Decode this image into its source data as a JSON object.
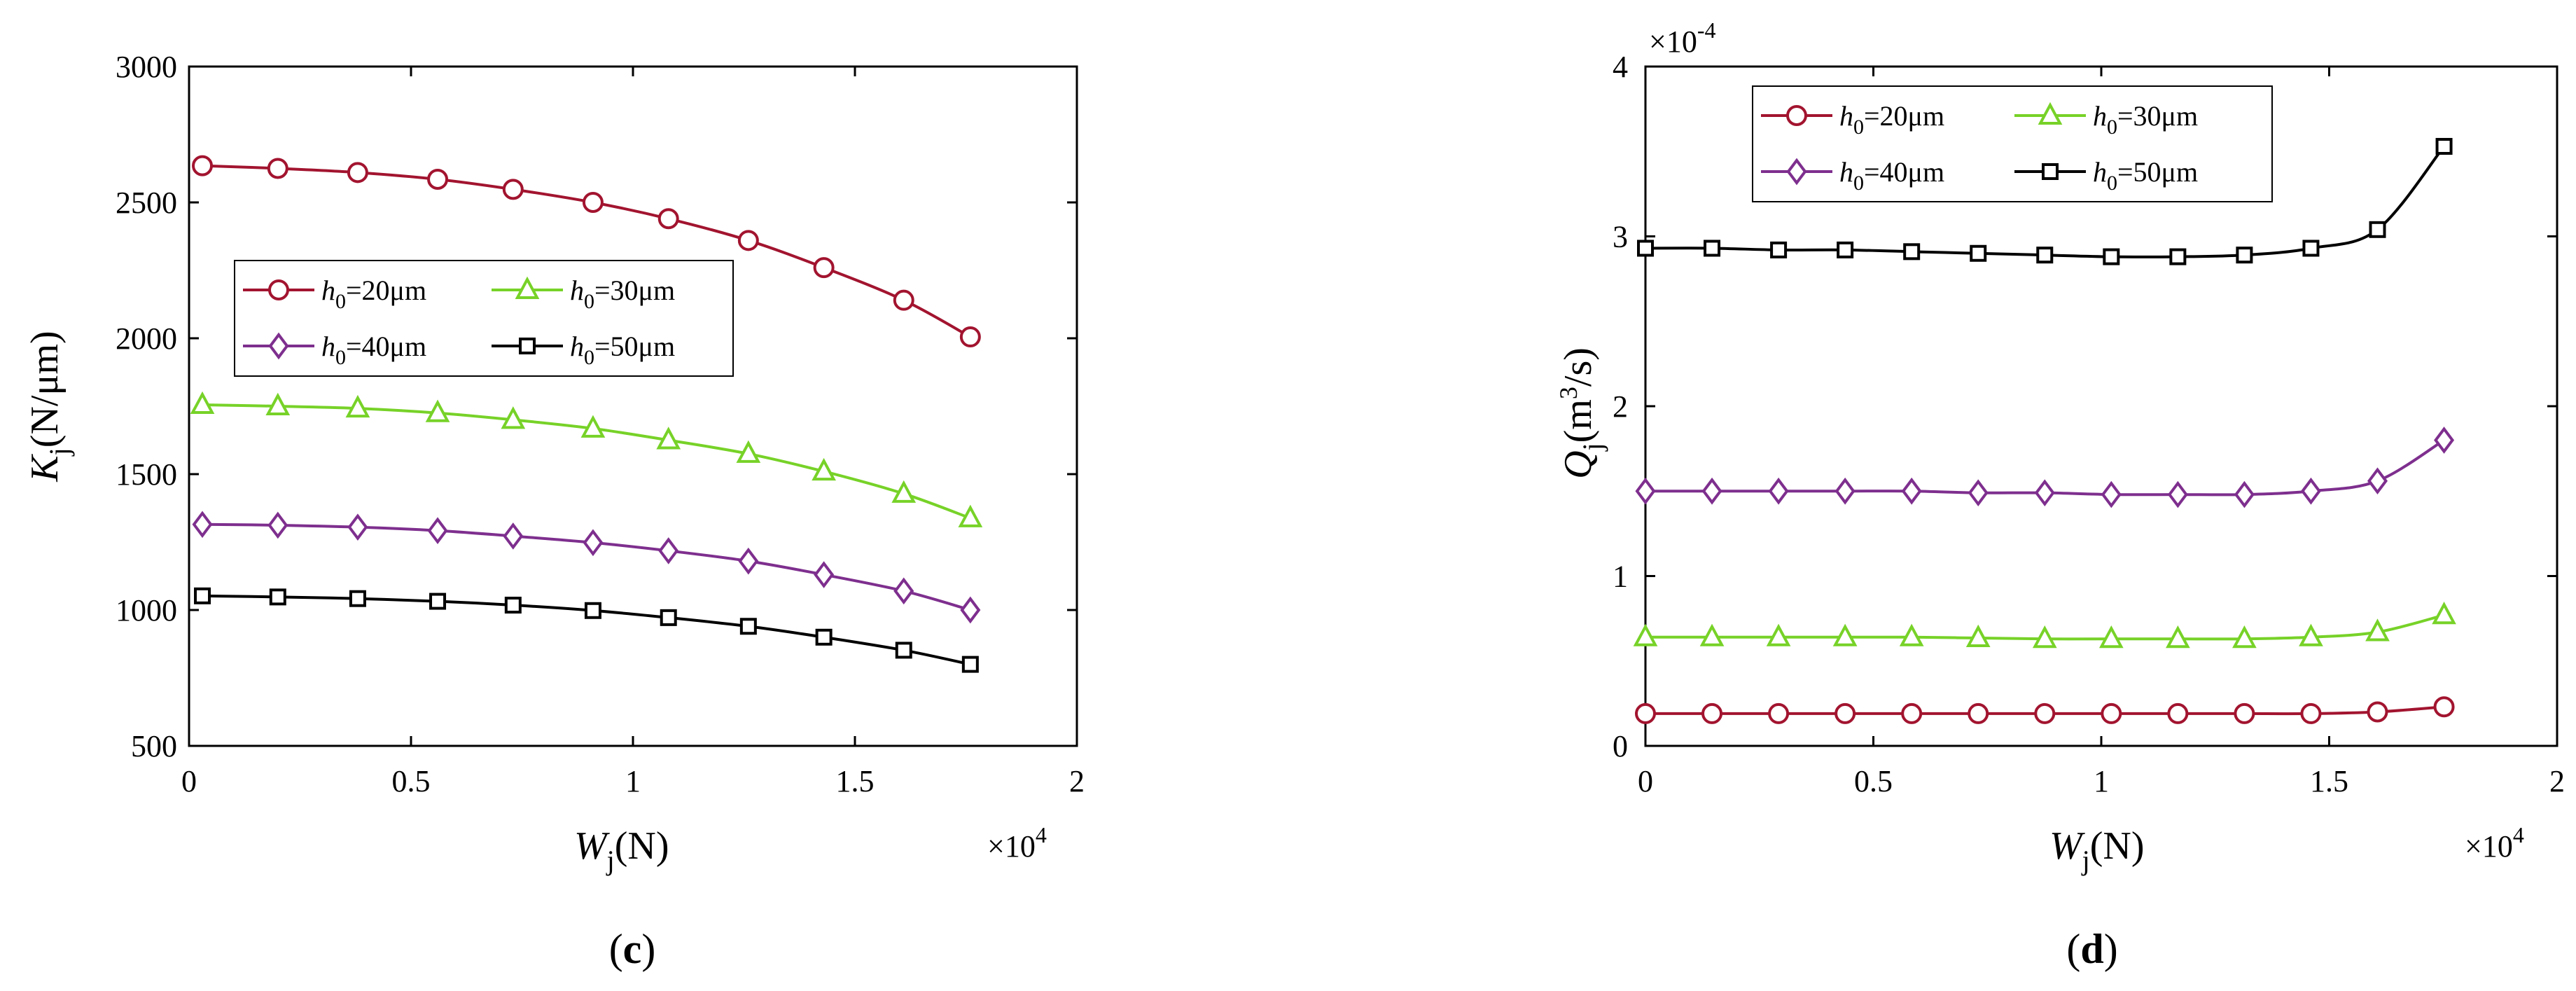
{
  "colors": {
    "h20": "#A2142F",
    "h30": "#77D228",
    "h40": "#7E2F8E",
    "h50": "#000000"
  },
  "chart_data": [
    {
      "id": "c",
      "type": "line",
      "caption": {
        "open": "(",
        "letter": "c",
        "close": ")"
      },
      "xlabel": {
        "main": "W",
        "sub": "j",
        "unit": "(N)"
      },
      "ylabel": {
        "main": "K",
        "sub": "j",
        "unit": "(N/μm)"
      },
      "xexp": {
        "base": "×10",
        "exp": "4"
      },
      "xlim": [
        0,
        2
      ],
      "ylim": [
        500,
        3000
      ],
      "xticks": [
        "0",
        "0.5",
        "1",
        "1.5",
        "2"
      ],
      "yticks": [
        "500",
        "1000",
        "1500",
        "2000",
        "2500",
        "3000"
      ],
      "xtick_values": [
        0,
        0.5,
        1,
        1.5,
        2
      ],
      "ytick_values": [
        500,
        1000,
        1500,
        2000,
        2500,
        3000
      ],
      "legend": {
        "position": "middle-left"
      },
      "x": [
        0.03,
        0.2,
        0.38,
        0.56,
        0.73,
        0.91,
        1.08,
        1.26,
        1.43,
        1.61,
        1.76
      ],
      "series": [
        {
          "key": "h20",
          "h": "h",
          "sub": "0",
          "value": "=20μm",
          "marker": "circle",
          "values": [
            2635,
            2625,
            2610,
            2585,
            2548,
            2500,
            2440,
            2360,
            2260,
            2140,
            2005
          ]
        },
        {
          "key": "h30",
          "h": "h",
          "sub": "0",
          "value": "=30μm",
          "marker": "triangle",
          "values": [
            1755,
            1750,
            1742,
            1725,
            1700,
            1668,
            1625,
            1575,
            1510,
            1428,
            1338
          ]
        },
        {
          "key": "h40",
          "h": "h",
          "sub": "0",
          "value": "=40μm",
          "marker": "diamond",
          "values": [
            1315,
            1312,
            1305,
            1292,
            1272,
            1248,
            1218,
            1180,
            1130,
            1070,
            1000
          ]
        },
        {
          "key": "h50",
          "h": "h",
          "sub": "0",
          "value": "=50μm",
          "marker": "square",
          "values": [
            1052,
            1048,
            1042,
            1032,
            1018,
            998,
            972,
            940,
            900,
            852,
            800
          ]
        }
      ]
    },
    {
      "id": "d",
      "type": "line",
      "caption": {
        "open": "(",
        "letter": "d",
        "close": ")"
      },
      "xlabel": {
        "main": "W",
        "sub": "j",
        "unit": "(N)"
      },
      "ylabel": {
        "main": "Q",
        "sub": "j",
        "unit": "(m",
        "sup": "3",
        "unit2": "/s)"
      },
      "xexp": {
        "base": "×10",
        "exp": "4"
      },
      "yexp": {
        "base": "×10",
        "exp": "-4"
      },
      "xlim": [
        0,
        2
      ],
      "ylim": [
        0,
        4
      ],
      "xticks": [
        "0",
        "0.5",
        "1",
        "1.5",
        "2"
      ],
      "yticks": [
        "0",
        "1",
        "2",
        "3",
        "4"
      ],
      "xtick_values": [
        0,
        0.5,
        1,
        1.5,
        2
      ],
      "ytick_values": [
        0,
        1,
        2,
        3,
        4
      ],
      "legend": {
        "position": "top-left"
      },
      "x": [
        0,
        0.146,
        0.292,
        0.438,
        0.584,
        0.73,
        0.876,
        1.022,
        1.168,
        1.314,
        1.46,
        1.606,
        1.752
      ],
      "series": [
        {
          "key": "h20",
          "h": "h",
          "sub": "0",
          "value": "=20μm",
          "marker": "circle",
          "values": [
            0.19,
            0.19,
            0.19,
            0.19,
            0.19,
            0.19,
            0.19,
            0.19,
            0.19,
            0.19,
            0.19,
            0.2,
            0.23
          ]
        },
        {
          "key": "h30",
          "h": "h",
          "sub": "0",
          "value": "=30μm",
          "marker": "triangle",
          "values": [
            0.64,
            0.64,
            0.64,
            0.64,
            0.64,
            0.635,
            0.63,
            0.63,
            0.63,
            0.63,
            0.64,
            0.67,
            0.77
          ]
        },
        {
          "key": "h40",
          "h": "h",
          "sub": "0",
          "value": "=40μm",
          "marker": "diamond",
          "values": [
            1.5,
            1.5,
            1.5,
            1.5,
            1.5,
            1.49,
            1.49,
            1.48,
            1.48,
            1.48,
            1.5,
            1.56,
            1.8
          ]
        },
        {
          "key": "h50",
          "h": "h",
          "sub": "0",
          "value": "=50μm",
          "marker": "square",
          "values": [
            2.93,
            2.93,
            2.92,
            2.92,
            2.91,
            2.9,
            2.89,
            2.88,
            2.88,
            2.89,
            2.93,
            3.04,
            3.53
          ]
        }
      ]
    }
  ]
}
